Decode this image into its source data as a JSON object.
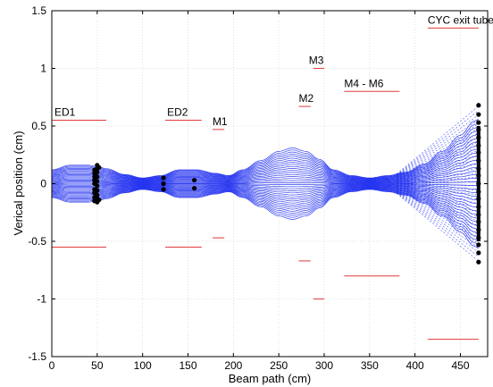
{
  "chart_data": {
    "type": "line",
    "title": "",
    "xlabel": "Beam path (cm)",
    "ylabel": "Verical position (cm)",
    "xlim": [
      0,
      480
    ],
    "ylim": [
      -1.5,
      1.5
    ],
    "xticks": [
      0,
      50,
      100,
      150,
      200,
      250,
      300,
      350,
      400,
      450
    ],
    "yticks": [
      -1.5,
      -1,
      -0.5,
      0,
      0.5,
      1,
      1.5
    ],
    "ytick_labels": [
      "-1.5",
      "-1",
      "-0.5",
      "0",
      "0.5",
      "1",
      "1.5"
    ],
    "grid": true,
    "colors": {
      "trajectories": "#1f2ff0",
      "apertures": "#e23a3a",
      "markers": "#000000"
    },
    "envelope": {
      "x": [
        0,
        20,
        40,
        50,
        60,
        80,
        100,
        120,
        140,
        160,
        180,
        195,
        210,
        230,
        250,
        265,
        280,
        295,
        310,
        330,
        350,
        370,
        390,
        410,
        430,
        450,
        465,
        470
      ],
      "ymax": [
        0.12,
        0.16,
        0.16,
        0.15,
        0.13,
        0.08,
        0.05,
        0.07,
        0.12,
        0.12,
        0.09,
        0.07,
        0.12,
        0.2,
        0.28,
        0.31,
        0.28,
        0.21,
        0.12,
        0.07,
        0.05,
        0.07,
        0.1,
        0.17,
        0.28,
        0.42,
        0.54,
        0.56
      ]
    },
    "apertures": [
      {
        "label": "ED1",
        "x0": 0,
        "x1": 60,
        "y_top": 0.55,
        "y_bottom": -0.55
      },
      {
        "label": "ED2",
        "x0": 125,
        "x1": 165,
        "y_top": 0.55,
        "y_bottom": -0.55
      },
      {
        "label": "M1",
        "x0": 177,
        "x1": 190,
        "y_top": 0.47,
        "y_bottom": -0.47
      },
      {
        "label": "M2",
        "x0": 272,
        "x1": 285,
        "y_top": 0.67,
        "y_bottom": -0.67
      },
      {
        "label": "M3",
        "x0": 288,
        "x1": 300,
        "y_top": 1.0,
        "y_bottom": -1.0
      },
      {
        "label": "M4 - M6",
        "x0": 322,
        "x1": 383,
        "y_top": 0.8,
        "y_bottom": -0.8
      },
      {
        "label": "CYC exit tube",
        "x0": 414,
        "x1": 470,
        "y_top": 1.35,
        "y_bottom": -1.35
      }
    ],
    "marker_columns": [
      {
        "x": 47,
        "y": [
          -0.15,
          -0.12,
          -0.08,
          -0.05,
          0.0,
          0.03,
          0.06,
          0.09,
          0.12
        ]
      },
      {
        "x": 50,
        "y": [
          -0.16,
          -0.13,
          -0.1,
          -0.06,
          -0.02,
          0.02,
          0.06,
          0.1,
          0.13,
          0.16
        ]
      },
      {
        "x": 52,
        "y": [
          -0.14,
          0.14
        ]
      },
      {
        "x": 123,
        "y": [
          -0.05,
          0.0,
          0.05
        ]
      },
      {
        "x": 157,
        "y": [
          -0.04,
          0.03
        ]
      },
      {
        "x": 470,
        "y": [
          -0.68,
          -0.6,
          -0.53,
          -0.47,
          -0.4,
          -0.33,
          -0.27,
          -0.2,
          -0.13,
          -0.07,
          0.0,
          0.07,
          0.13,
          0.2,
          0.27,
          0.33,
          0.4,
          0.47,
          0.53,
          0.6,
          0.68
        ]
      }
    ]
  }
}
